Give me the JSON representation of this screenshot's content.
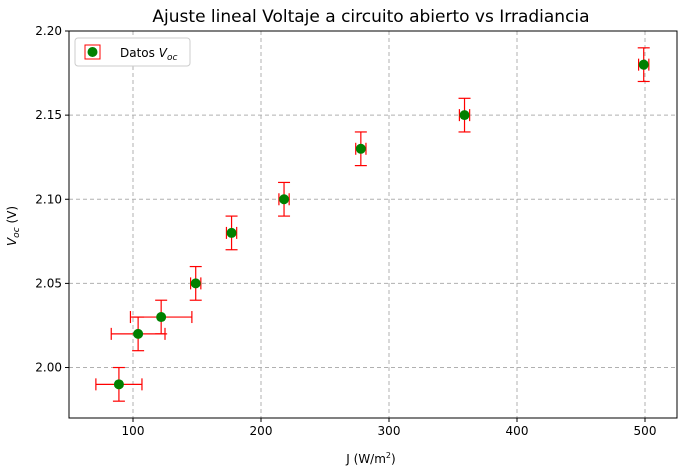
{
  "chart_data": {
    "type": "scatter",
    "title": "Ajuste lineal Voltaje a circuito abierto vs Irradiancia",
    "xlabel_main": "J (W/m",
    "xlabel_sup": "2",
    "xlabel_end": ")",
    "ylabel_main": "V",
    "ylabel_sub": "oc",
    "ylabel_end": " (V)",
    "xlim": [
      50,
      525
    ],
    "ylim": [
      1.97,
      2.2
    ],
    "x_ticks": [
      100,
      200,
      300,
      400,
      500
    ],
    "x_tick_labels": [
      "100",
      "200",
      "300",
      "400",
      "500"
    ],
    "y_ticks": [
      2.0,
      2.05,
      2.1,
      2.15,
      2.2
    ],
    "y_tick_labels": [
      "2.00",
      "2.05",
      "2.10",
      "2.15",
      "2.20"
    ],
    "grid": true,
    "legend_position": "top-left",
    "series": [
      {
        "name_main": "Datos ",
        "name_var": "V",
        "name_sub": "oc",
        "marker_color": "#008000",
        "errorbar_color": "#ff0000",
        "points": [
          {
            "x": 89,
            "y": 1.99,
            "xerr": 18,
            "yerr": 0.01
          },
          {
            "x": 104,
            "y": 2.02,
            "xerr": 21,
            "yerr": 0.01
          },
          {
            "x": 122,
            "y": 2.03,
            "xerr": 24,
            "yerr": 0.01
          },
          {
            "x": 149,
            "y": 2.05,
            "xerr": 4,
            "yerr": 0.01
          },
          {
            "x": 177,
            "y": 2.08,
            "xerr": 4,
            "yerr": 0.01
          },
          {
            "x": 218,
            "y": 2.1,
            "xerr": 4,
            "yerr": 0.01
          },
          {
            "x": 278,
            "y": 2.13,
            "xerr": 4,
            "yerr": 0.01
          },
          {
            "x": 359,
            "y": 2.15,
            "xerr": 4,
            "yerr": 0.01
          },
          {
            "x": 499,
            "y": 2.18,
            "xerr": 4,
            "yerr": 0.01
          }
        ]
      }
    ]
  }
}
